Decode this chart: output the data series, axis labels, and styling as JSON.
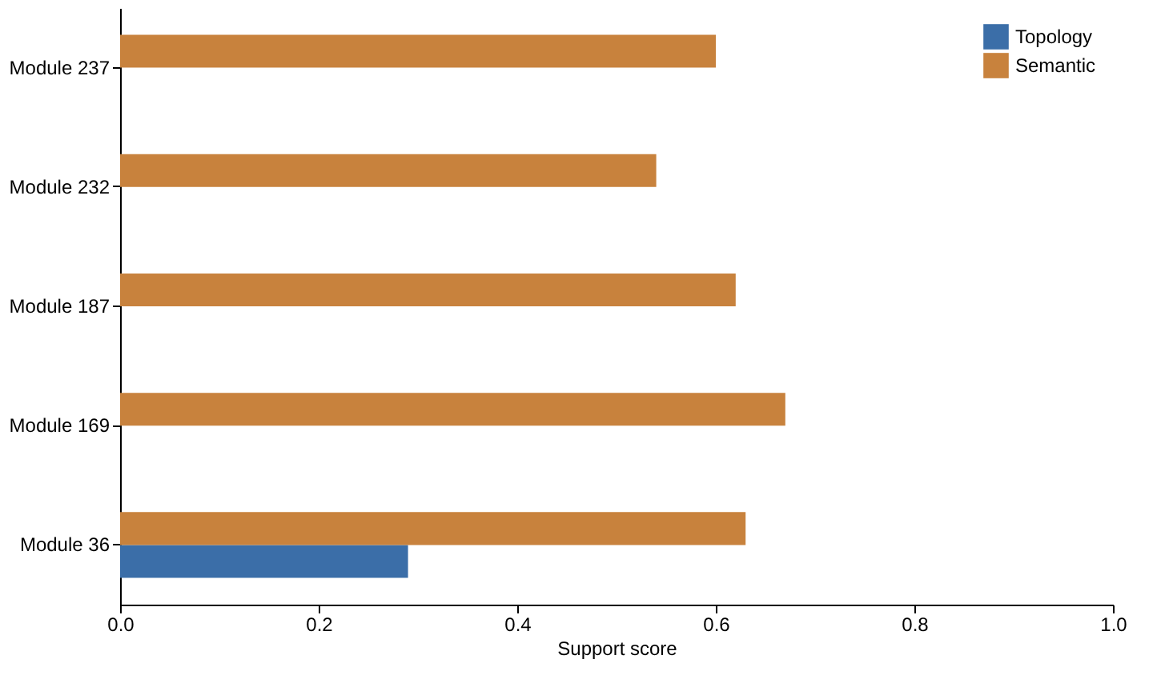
{
  "chart_data": {
    "type": "bar",
    "orientation": "horizontal",
    "xlabel": "Support score",
    "categories": [
      "Module 237",
      "Module 232",
      "Module 187",
      "Module 169",
      "Module 36"
    ],
    "series": [
      {
        "name": "Topology",
        "color": "#3b6ea8",
        "values": [
          0,
          0,
          0,
          0,
          0.29
        ]
      },
      {
        "name": "Semantic",
        "color": "#c8823d",
        "values": [
          0.6,
          0.54,
          0.62,
          0.67,
          0.63
        ]
      }
    ],
    "xlim": [
      0,
      1
    ],
    "xticks": [
      {
        "value": 0,
        "label": "0.0"
      },
      {
        "value": 0.2,
        "label": "0.2"
      },
      {
        "value": 0.4,
        "label": "0.4"
      },
      {
        "value": 0.6,
        "label": "0.6"
      },
      {
        "value": 0.8,
        "label": "0.8"
      },
      {
        "value": 1,
        "label": "1.0"
      }
    ],
    "grid": false,
    "legend": "top right"
  }
}
